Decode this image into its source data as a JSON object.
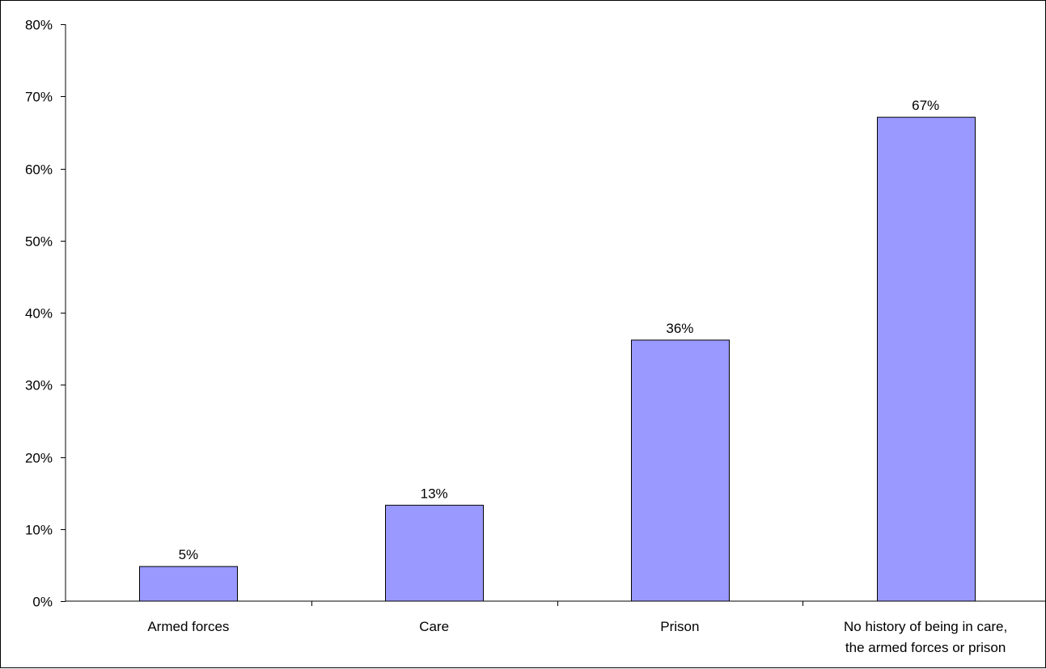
{
  "chart_data": {
    "type": "bar",
    "categories": [
      [
        "Armed forces"
      ],
      [
        "Care"
      ],
      [
        "Prison"
      ],
      [
        "No history of being in care,",
        "the armed forces or prison"
      ]
    ],
    "values": [
      4.8,
      13.3,
      36.2,
      67.1
    ],
    "data_labels": [
      "5%",
      "13%",
      "36%",
      "67%"
    ],
    "y_ticks": [
      0,
      10,
      20,
      30,
      40,
      50,
      60,
      70,
      80
    ],
    "y_tick_labels": [
      "0%",
      "10%",
      "20%",
      "30%",
      "40%",
      "50%",
      "60%",
      "70%",
      "80%"
    ],
    "ylim": [
      0,
      80
    ],
    "title": "",
    "xlabel": "",
    "ylabel": "",
    "grid": false,
    "legend": "none",
    "bar_color": "#9999ff",
    "bar_edge_color": "#000000"
  }
}
